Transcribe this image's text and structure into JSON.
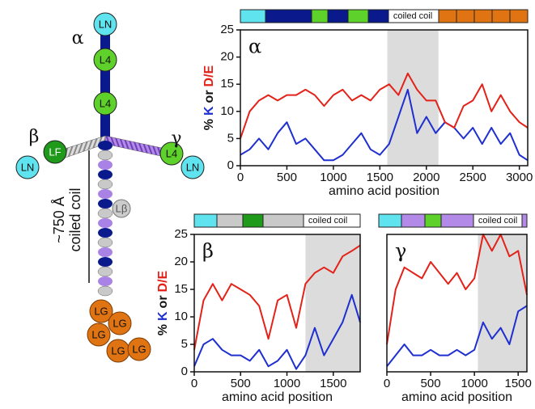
{
  "chart_data": [
    {
      "type": "line",
      "title": "α",
      "xlabel": "amino acid position",
      "ylabel_prefix": "%",
      "ylabel_joiner": "or",
      "annotation": "coiled coil",
      "x": [
        0,
        100,
        200,
        300,
        400,
        500,
        600,
        700,
        800,
        900,
        1000,
        1100,
        1200,
        1300,
        1400,
        1500,
        1600,
        1700,
        1800,
        1900,
        2000,
        2100,
        2200,
        2300,
        2400,
        2500,
        2600,
        2700,
        2800,
        2900,
        3000,
        3090
      ],
      "series": [
        {
          "name": "K",
          "color": "#1f2fd0",
          "values": [
            2,
            3,
            5,
            3,
            6,
            8,
            4,
            5,
            3,
            1,
            1,
            2,
            4,
            6,
            3,
            2,
            4,
            9,
            14,
            6,
            9,
            6,
            8,
            7,
            5,
            7,
            4,
            7,
            4,
            6,
            2,
            1
          ]
        },
        {
          "name": "D/E",
          "color": "#e32219",
          "values": [
            5,
            10,
            12,
            13,
            12,
            13,
            13,
            14,
            13,
            11,
            13,
            14,
            12,
            13,
            12,
            14,
            15,
            13,
            17,
            14,
            12,
            12,
            8,
            7,
            11,
            12,
            15,
            10,
            13,
            10,
            8,
            7
          ]
        }
      ],
      "shaded_region": [
        1580,
        2130
      ],
      "xlim": [
        0,
        3090
      ],
      "xticks": [
        0,
        500,
        1000,
        1500,
        2000,
        2500,
        3000
      ],
      "ylim": [
        0,
        25
      ],
      "yticks": [
        0,
        5,
        10,
        15,
        20,
        25
      ]
    },
    {
      "type": "line",
      "title": "β",
      "xlabel": "amino acid position",
      "ylabel_prefix": "%",
      "ylabel_joiner": "or",
      "annotation": "coiled coil",
      "x": [
        0,
        100,
        200,
        300,
        400,
        500,
        600,
        700,
        800,
        900,
        1000,
        1100,
        1200,
        1300,
        1400,
        1500,
        1600,
        1700,
        1790
      ],
      "series": [
        {
          "name": "K",
          "color": "#1f2fd0",
          "values": [
            1,
            5,
            6,
            4,
            3,
            3,
            2,
            4,
            1,
            2,
            4,
            0.5,
            3,
            8,
            3,
            6,
            9,
            14,
            9
          ]
        },
        {
          "name": "D/E",
          "color": "#e32219",
          "values": [
            4,
            13,
            16,
            13,
            16,
            15,
            14,
            12,
            6,
            13,
            14,
            8,
            16,
            18,
            19,
            18,
            21,
            22,
            23
          ]
        }
      ],
      "shaded_region": [
        1200,
        1790
      ],
      "xlim": [
        0,
        1790
      ],
      "xticks": [
        0,
        500,
        1000,
        1500
      ],
      "ylim": [
        0,
        25
      ],
      "yticks": [
        0,
        5,
        10,
        15,
        20,
        25
      ]
    },
    {
      "type": "line",
      "title": "γ",
      "xlabel": "amino acid position",
      "annotation": "coiled coil",
      "x": [
        0,
        100,
        200,
        300,
        400,
        500,
        600,
        700,
        800,
        900,
        1000,
        1100,
        1200,
        1300,
        1400,
        1500,
        1600
      ],
      "series": [
        {
          "name": "K",
          "color": "#1f2fd0",
          "values": [
            1,
            3,
            5,
            3,
            3,
            4,
            3,
            3,
            4,
            3,
            4,
            9,
            6,
            8,
            5,
            11,
            12
          ]
        },
        {
          "name": "D/E",
          "color": "#e32219",
          "values": [
            5,
            15,
            19,
            18,
            17,
            20,
            18,
            16,
            18,
            15,
            17,
            25,
            22,
            25,
            21,
            22,
            14
          ]
        }
      ],
      "shaded_region": [
        1040,
        1600
      ],
      "xlim": [
        0,
        1600
      ],
      "xticks": [
        0,
        500,
        1000,
        1500
      ],
      "ylim": [
        0,
        25
      ]
    }
  ],
  "diagram": {
    "alpha": "α",
    "beta": "β",
    "gamma": "γ",
    "nodes": [
      "LN",
      "L4",
      "L4",
      "LF",
      "LN",
      "L4",
      "LN",
      "Lβ",
      "LG",
      "LG",
      "LG",
      "LG",
      "LG"
    ],
    "length": "~750 Å",
    "region": "coiled coil"
  }
}
